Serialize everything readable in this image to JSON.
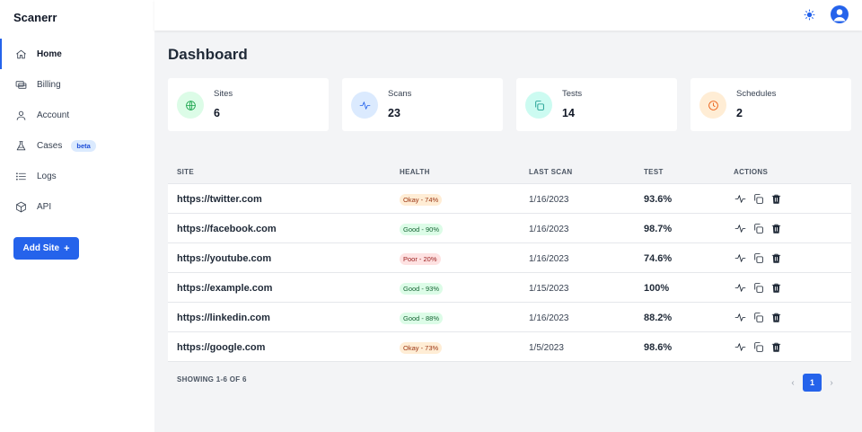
{
  "app": {
    "brand": "Scanerr"
  },
  "sidebar": {
    "items": [
      {
        "label": "Home",
        "icon": "home-icon",
        "active": true
      },
      {
        "label": "Billing",
        "icon": "billing-icon"
      },
      {
        "label": "Account",
        "icon": "user-icon"
      },
      {
        "label": "Cases",
        "icon": "flask-icon",
        "badge": "beta"
      },
      {
        "label": "Logs",
        "icon": "list-icon"
      },
      {
        "label": "API",
        "icon": "cube-icon"
      }
    ],
    "add_site_label": "Add Site",
    "add_site_icon": "plus-icon"
  },
  "topbar": {
    "theme_icon": "sun-icon",
    "avatar_icon": "user-avatar-icon"
  },
  "main": {
    "title": "Dashboard",
    "stats": [
      {
        "label": "Sites",
        "value": "6",
        "icon": "globe-icon",
        "bg": "#dcfce7",
        "color": "#16a34a"
      },
      {
        "label": "Scans",
        "value": "23",
        "icon": "pulse-icon",
        "bg": "#dbeafe",
        "color": "#2563eb"
      },
      {
        "label": "Tests",
        "value": "14",
        "icon": "copy-icon",
        "bg": "#ccfbf1",
        "color": "#0d9488"
      },
      {
        "label": "Schedules",
        "value": "2",
        "icon": "clock-icon",
        "bg": "#ffedd5",
        "color": "#ea580c"
      }
    ]
  },
  "table": {
    "headers": {
      "site": "SITE",
      "health": "HEALTH",
      "last_scan": "LAST SCAN",
      "test": "TEST",
      "actions": "ACTIONS"
    },
    "rows": [
      {
        "site": "https://twitter.com",
        "health": "Okay - 74%",
        "status": "okay",
        "last_scan": "1/16/2023",
        "test": "93.6%"
      },
      {
        "site": "https://facebook.com",
        "health": "Good - 90%",
        "status": "good",
        "last_scan": "1/16/2023",
        "test": "98.7%"
      },
      {
        "site": "https://youtube.com",
        "health": "Poor - 20%",
        "status": "poor",
        "last_scan": "1/16/2023",
        "test": "74.6%"
      },
      {
        "site": "https://example.com",
        "health": "Good - 93%",
        "status": "good",
        "last_scan": "1/15/2023",
        "test": "100%"
      },
      {
        "site": "https://linkedin.com",
        "health": "Good - 88%",
        "status": "good",
        "last_scan": "1/16/2023",
        "test": "88.2%"
      },
      {
        "site": "https://google.com",
        "health": "Okay - 73%",
        "status": "okay",
        "last_scan": "1/5/2023",
        "test": "98.6%"
      }
    ],
    "action_icons": [
      "pulse-icon",
      "copy-icon",
      "trash-icon"
    ]
  },
  "pagination": {
    "showing": "SHOWING 1-6 OF 6",
    "current_page": "1",
    "prev": "‹",
    "next": "›"
  }
}
